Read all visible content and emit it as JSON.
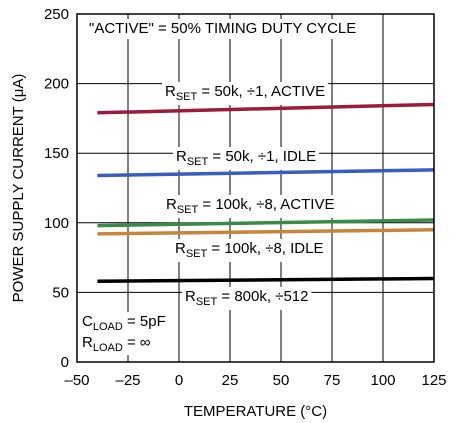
{
  "chart_data": {
    "type": "line",
    "title": "",
    "xlabel": "TEMPERATURE (°C)",
    "ylabel": "POWER SUPPLY CURRENT (μA)",
    "xlim": [
      -50,
      125
    ],
    "ylim": [
      0,
      250
    ],
    "xticks": [
      -50,
      -25,
      0,
      25,
      50,
      75,
      100,
      125
    ],
    "yticks": [
      0,
      50,
      100,
      150,
      200,
      250
    ],
    "xtick_labels": [
      "–50",
      "–25",
      "0",
      "25",
      "50",
      "75",
      "100",
      "125"
    ],
    "ytick_labels": [
      "0",
      "50",
      "100",
      "150",
      "200",
      "250"
    ],
    "grid": true,
    "legend": "none",
    "annotations": {
      "top": "\"ACTIVE\" = 50% TIMING DUTY CYCLE",
      "cload_main": "C",
      "cload_sub": "LOAD",
      "cload_value": " = 5pF",
      "rload_main": "R",
      "rload_sub": "LOAD",
      "rload_value": " = ∞"
    },
    "series": [
      {
        "id": "s1",
        "label_main": "R",
        "label_sub": "SET",
        "label_rest": " = 50k, ÷1, ACTIVE",
        "color": "#9b1b3a",
        "x": [
          -40,
          125
        ],
        "y": [
          179,
          185
        ]
      },
      {
        "id": "s2",
        "label_main": "R",
        "label_sub": "SET",
        "label_rest": " = 50k, ÷1, IDLE",
        "color": "#3a5bbf",
        "x": [
          -40,
          125
        ],
        "y": [
          134,
          138
        ]
      },
      {
        "id": "s3",
        "label_main": "R",
        "label_sub": "SET",
        "label_rest": " = 100k, ÷8, ACTIVE",
        "color": "#3a8a4a",
        "x": [
          -40,
          125
        ],
        "y": [
          98,
          102
        ]
      },
      {
        "id": "s4",
        "label_main": "R",
        "label_sub": "SET",
        "label_rest": " = 100k, ÷8, IDLE",
        "color": "#c8843a",
        "x": [
          -40,
          125
        ],
        "y": [
          92,
          95
        ]
      },
      {
        "id": "s5",
        "label_main": "R",
        "label_sub": "SET",
        "label_rest": " = 800k, ÷512",
        "color": "#000000",
        "x": [
          -40,
          125
        ],
        "y": [
          58,
          60
        ]
      }
    ]
  }
}
